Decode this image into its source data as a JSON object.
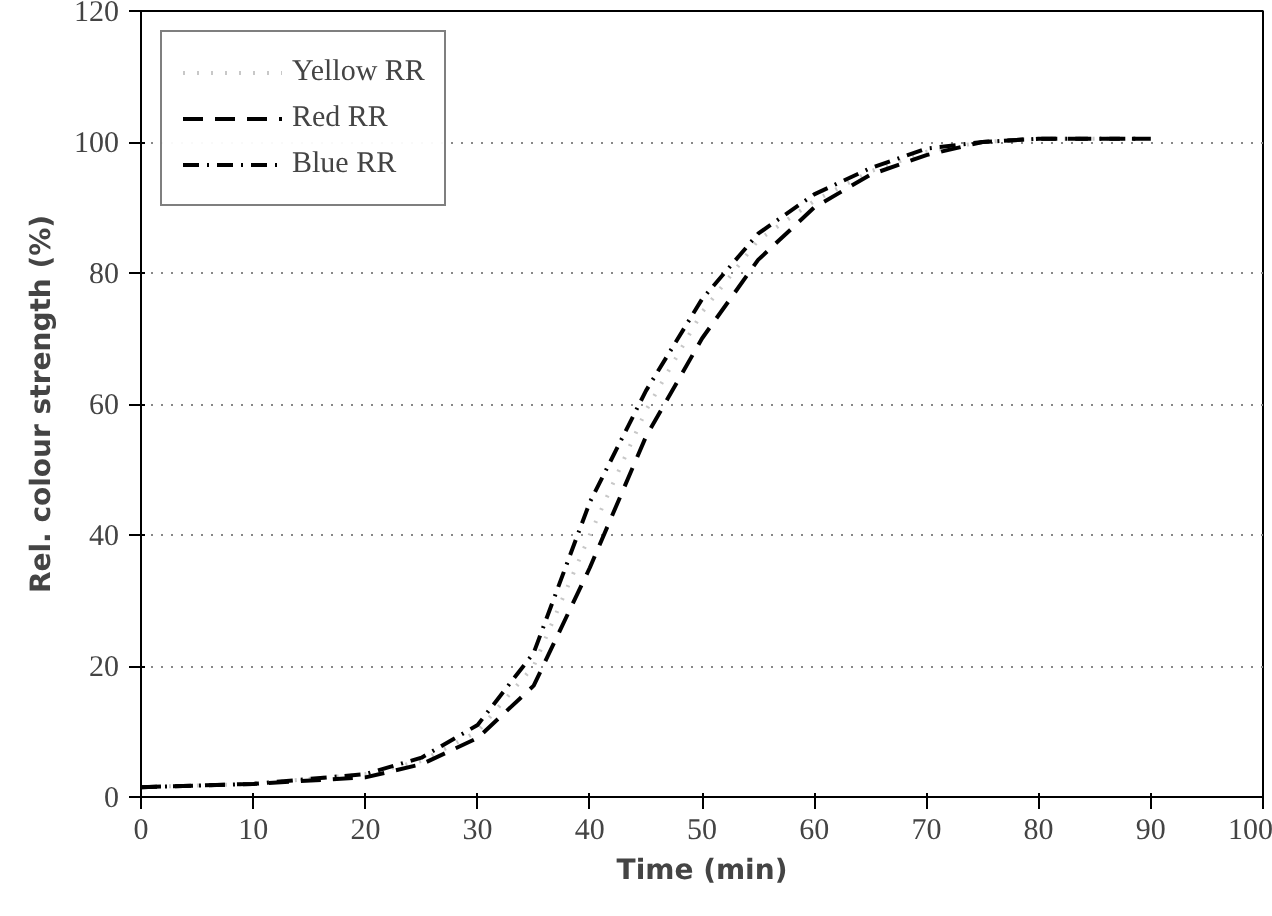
{
  "chart_data": {
    "type": "line",
    "xlabel": "Time (min)",
    "ylabel": "Rel. colour strength (%)",
    "x": [
      0,
      10,
      20,
      25,
      30,
      35,
      40,
      45,
      50,
      55,
      60,
      65,
      70,
      75,
      80,
      90
    ],
    "series": [
      {
        "name": "Yellow RR",
        "color": "#c8c8c8",
        "line_style": "dotted",
        "x": [
          0,
          10,
          20,
          25,
          30,
          35,
          40,
          45,
          50,
          55,
          60,
          65,
          70,
          75,
          80,
          88
        ],
        "values": [
          1.5,
          2,
          3.5,
          5.5,
          10,
          20,
          40,
          59,
          74,
          85,
          91,
          95.5,
          98.5,
          100,
          100.5,
          100.5
        ]
      },
      {
        "name": "Red RR",
        "color": "#000000",
        "line_style": "dashed",
        "values": [
          1.5,
          2,
          3,
          5,
          9,
          17,
          35,
          55,
          70,
          82,
          90,
          95,
          98,
          100,
          100.5,
          100.5
        ]
      },
      {
        "name": "Blue RR",
        "color": "#000000",
        "line_style": "dashdot",
        "x": [
          0,
          10,
          20,
          25,
          30,
          35,
          40,
          45,
          50,
          55,
          60,
          65,
          70,
          75,
          80,
          89
        ],
        "values": [
          1.5,
          2,
          3.5,
          6,
          11,
          22,
          45,
          62,
          76,
          86,
          92,
          96,
          99,
          100,
          100.5,
          100.5
        ]
      }
    ],
    "xlim": [
      0,
      100
    ],
    "xticks": [
      0,
      10,
      20,
      30,
      40,
      50,
      60,
      70,
      80,
      90,
      100
    ],
    "ylim": [
      0,
      120
    ],
    "yticks": [
      0,
      20,
      40,
      60,
      80,
      100,
      120
    ],
    "grid": "y",
    "legend": "top left",
    "marker": "none"
  }
}
